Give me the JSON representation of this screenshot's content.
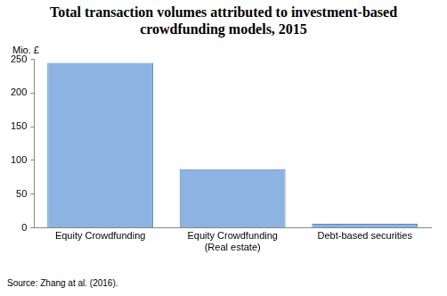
{
  "chart_data": {
    "type": "bar",
    "title": "Total transaction volumes attributed to investment-based crowdfunding models, 2015",
    "y_label": "Mio. £",
    "source": "Source: Zhang at al. (2016).",
    "categories": [
      "Equity Crowdfunding",
      "Equity Crowdfunding (Real estate)",
      "Debt-based securities"
    ],
    "values": [
      245,
      87,
      6
    ],
    "color": "#8db3e2",
    "ylim": [
      0,
      250
    ],
    "yticks": [
      0,
      50,
      100,
      150,
      200,
      250
    ],
    "grid": false
  }
}
